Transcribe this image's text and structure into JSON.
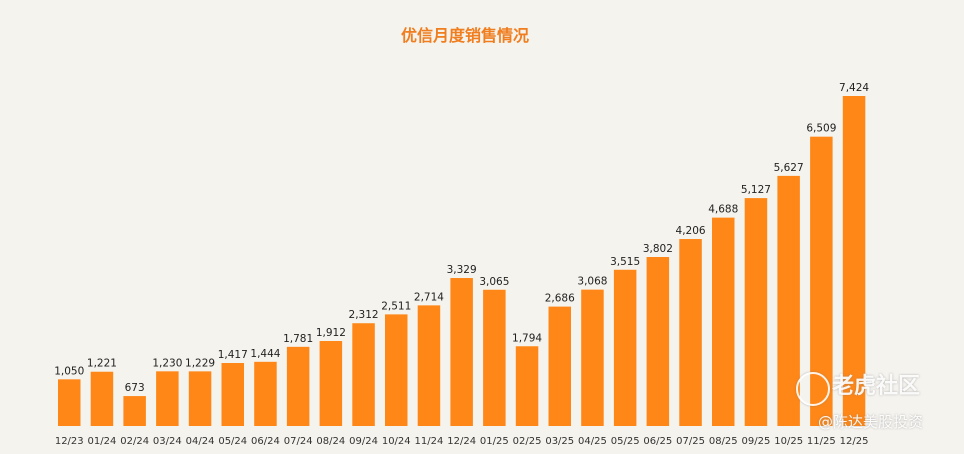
{
  "chart_data": {
    "type": "bar",
    "title": "优信月度销售情况",
    "xlabel": "",
    "ylabel": "",
    "categories": [
      "12/23",
      "01/24",
      "02/24",
      "03/24",
      "04/24",
      "05/24",
      "06/24",
      "07/24",
      "08/24",
      "09/24",
      "10/24",
      "11/24",
      "12/24",
      "01/25",
      "02/25",
      "03/25",
      "04/25",
      "05/25",
      "06/25",
      "07/25",
      "08/25",
      "09/25",
      "10/25",
      "11/25",
      "12/25"
    ],
    "values": [
      1050,
      1221,
      673,
      1230,
      1229,
      1417,
      1444,
      1781,
      1912,
      2312,
      2511,
      2714,
      3329,
      3065,
      1794,
      2686,
      3068,
      3515,
      3802,
      4206,
      4688,
      5127,
      5627,
      6509,
      7424
    ],
    "value_labels": [
      "1,050",
      "1,221",
      "673",
      "1,230",
      "1,229",
      "1,417",
      "1,444",
      "1,781",
      "1,912",
      "2,312",
      "2,511",
      "2,714",
      "3,329",
      "3,065",
      "1,794",
      "2,686",
      "3,068",
      "3,515",
      "3,802",
      "4,206",
      "4,688",
      "5,127",
      "5,627",
      "6,509",
      "7,424"
    ],
    "ylim": [
      0,
      7424
    ],
    "grid": false,
    "legend": "none",
    "colors": {
      "bar": "#ff8717",
      "title": "#f07d1e",
      "background": "#f5f3ee"
    }
  },
  "watermark": {
    "main": "老虎社区",
    "sub": "@陈达美股投资"
  }
}
